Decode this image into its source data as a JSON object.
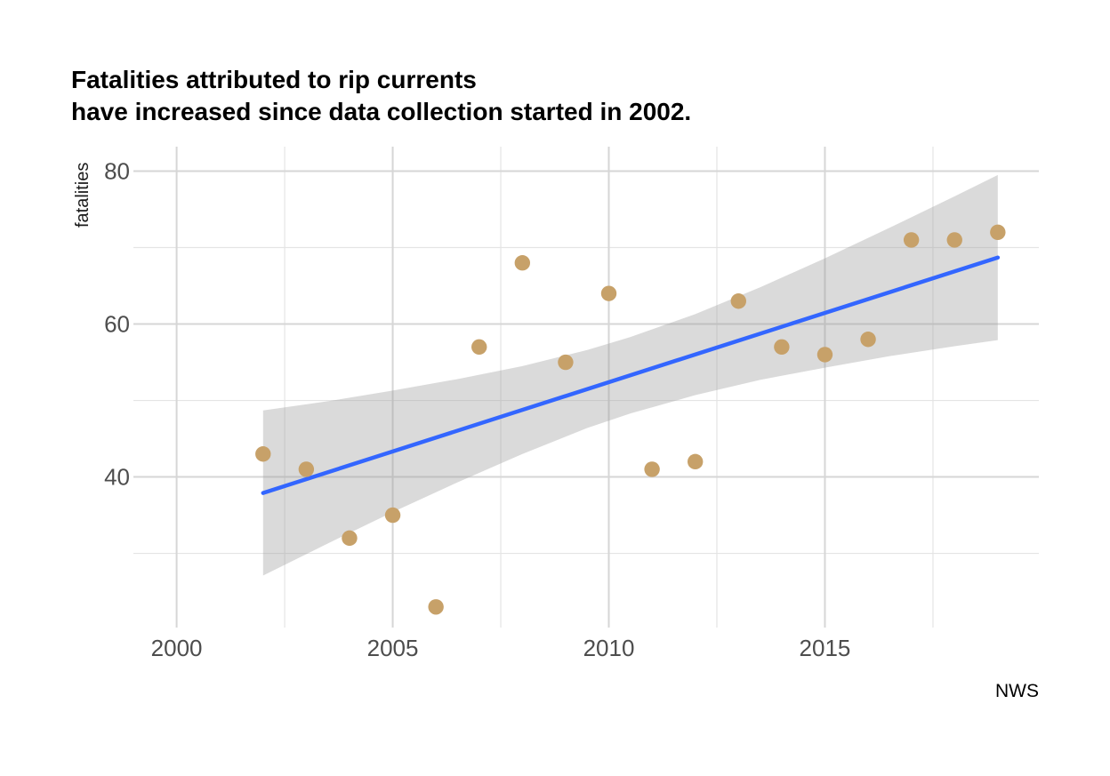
{
  "header": {
    "title": "Fatalities attributed to rip currents\nhave increased since data collection started in 2002."
  },
  "chart_data": {
    "type": "scatter",
    "title": "Fatalities attributed to rip currents\nhave increased since data collection started in 2002.",
    "xlabel": "",
    "ylabel": "fatalities",
    "caption": "NWS",
    "points": [
      [
        2002,
        43
      ],
      [
        2003,
        41
      ],
      [
        2004,
        32
      ],
      [
        2005,
        35
      ],
      [
        2006,
        23
      ],
      [
        2007,
        57
      ],
      [
        2008,
        68
      ],
      [
        2009,
        55
      ],
      [
        2010,
        64
      ],
      [
        2011,
        41
      ],
      [
        2012,
        42
      ],
      [
        2013,
        63
      ],
      [
        2014,
        57
      ],
      [
        2015,
        56
      ],
      [
        2016,
        58
      ],
      [
        2017,
        71
      ],
      [
        2018,
        71
      ],
      [
        2019,
        72
      ]
    ],
    "trend_line": {
      "type": "linear",
      "x": [
        2002,
        2019
      ],
      "y": [
        37.9,
        68.7
      ]
    },
    "confidence_band": [
      [
        2002,
        27.1,
        48.7
      ],
      [
        2003.5,
        31.3,
        49.9
      ],
      [
        2005,
        35.4,
        51.3
      ],
      [
        2006.5,
        39.3,
        52.8
      ],
      [
        2008,
        43.0,
        54.5
      ],
      [
        2009.5,
        46.4,
        56.6
      ],
      [
        2010.5,
        48.3,
        58.3
      ],
      [
        2012,
        50.7,
        61.3
      ],
      [
        2013.5,
        52.7,
        64.8
      ],
      [
        2015,
        54.3,
        68.6
      ],
      [
        2016.5,
        55.8,
        72.6
      ],
      [
        2018,
        57.1,
        76.7
      ],
      [
        2019,
        57.9,
        79.5
      ]
    ],
    "x_ticks": [
      2000,
      2005,
      2010,
      2015
    ],
    "x_minor_ticks": [
      2002.5,
      2007.5,
      2012.5,
      2017.5
    ],
    "y_ticks": [
      40,
      60,
      80
    ],
    "y_minor_ticks": [
      30,
      50,
      70
    ],
    "xlim": [
      1999.0,
      2019.95
    ],
    "ylim": [
      20.3,
      83.2
    ],
    "grid": true,
    "legend": "none",
    "colors": {
      "point": "#C7A169",
      "trend_line": "#3366FF",
      "band": "#9E9E9E",
      "band_opacity": 0.38,
      "grid_major": "#D6D6D6",
      "grid_minor": "#E4E4E4",
      "tick_label": "#4D4D4D",
      "background": "#FFFFFF"
    }
  }
}
